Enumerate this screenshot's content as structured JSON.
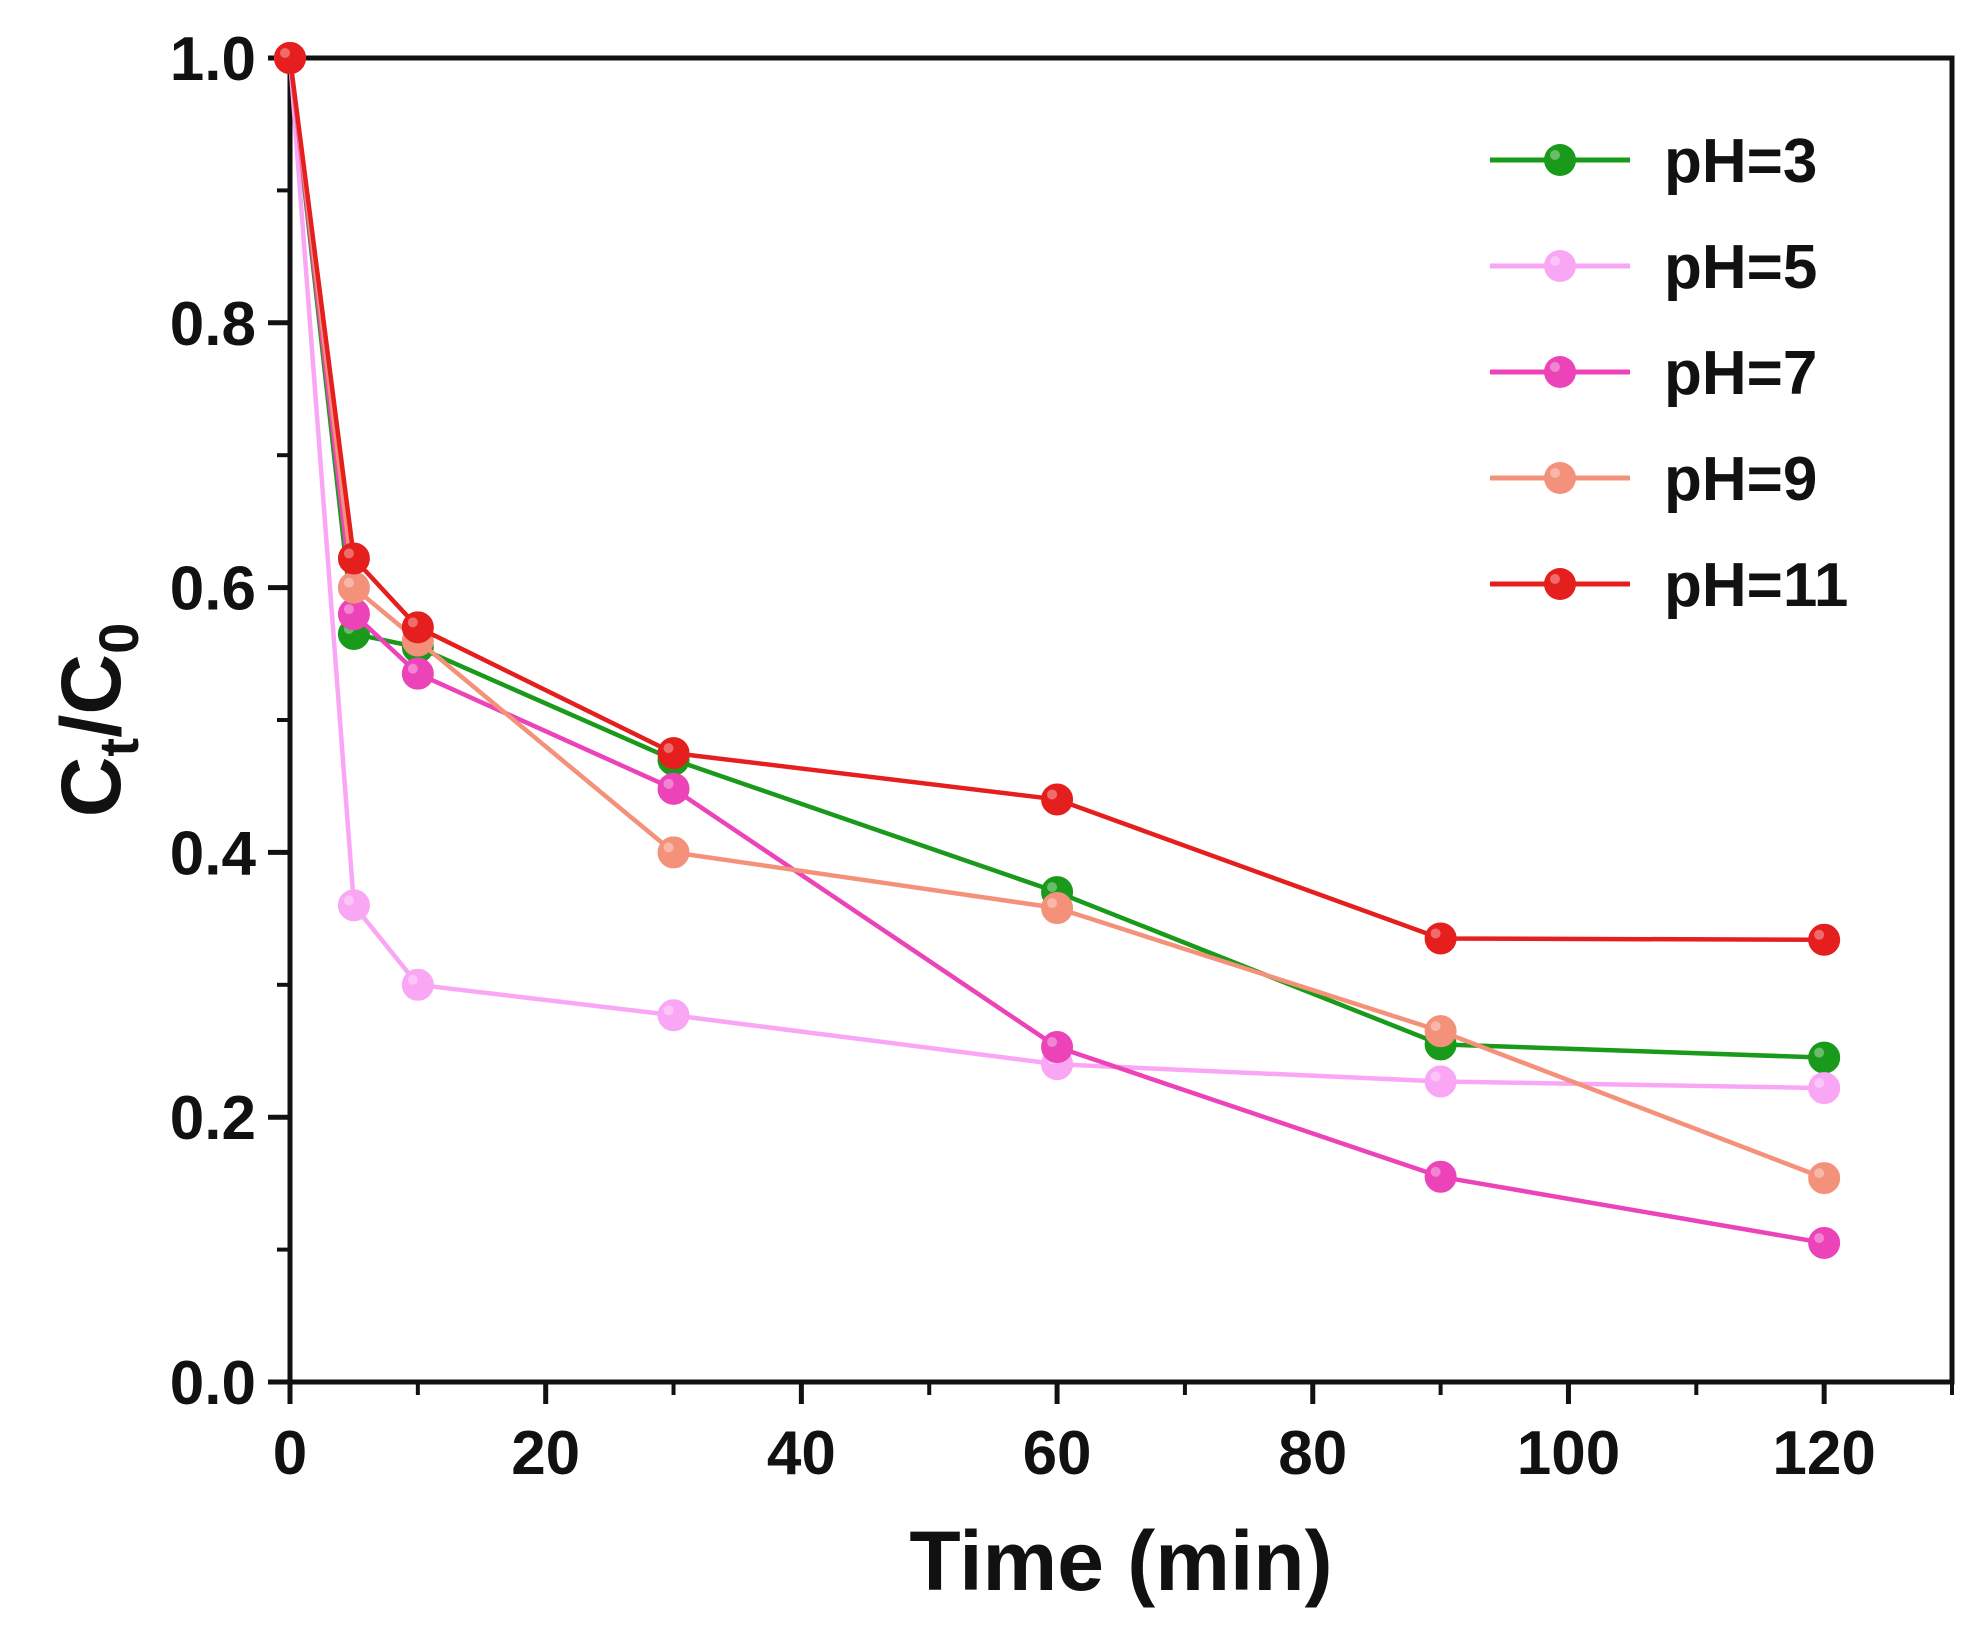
{
  "chart_data": {
    "type": "line",
    "xlabel": "Time (min)",
    "ylabel": {
      "main_1": "C",
      "sub_1": "t",
      "slash": "/",
      "main_2": "C",
      "sub_2": "0"
    },
    "xlim": [
      0,
      130
    ],
    "ylim": [
      0,
      1.0
    ],
    "x_ticks": [
      0,
      20,
      40,
      60,
      80,
      100,
      120
    ],
    "y_ticks": [
      0.0,
      0.2,
      0.4,
      0.6,
      0.8,
      1.0
    ],
    "x_tick_labels": [
      "0",
      "20",
      "40",
      "60",
      "80",
      "100",
      "120"
    ],
    "y_tick_labels": [
      "0.0",
      "0.2",
      "0.4",
      "0.6",
      "0.8",
      "1.0"
    ],
    "grid": false,
    "legend_position": "top-right",
    "x": [
      0,
      5,
      10,
      30,
      60,
      90,
      120
    ],
    "series": [
      {
        "name": "pH=3",
        "color": "#1a9a1a",
        "values": [
          1.0,
          0.565,
          0.555,
          0.47,
          0.37,
          0.255,
          0.245
        ]
      },
      {
        "name": "pH=5",
        "color": "#f9a6f5",
        "values": [
          1.0,
          0.36,
          0.3,
          0.277,
          0.24,
          0.227,
          0.222
        ]
      },
      {
        "name": "pH=7",
        "color": "#ec44b8",
        "values": [
          1.0,
          0.58,
          0.535,
          0.448,
          0.253,
          0.155,
          0.105
        ]
      },
      {
        "name": "pH=9",
        "color": "#f4917a",
        "values": [
          1.0,
          0.6,
          0.56,
          0.4,
          0.358,
          0.265,
          0.154
        ]
      },
      {
        "name": "pH=11",
        "color": "#e51e1e",
        "values": [
          1.0,
          0.622,
          0.57,
          0.475,
          0.44,
          0.335,
          0.334
        ]
      }
    ]
  }
}
